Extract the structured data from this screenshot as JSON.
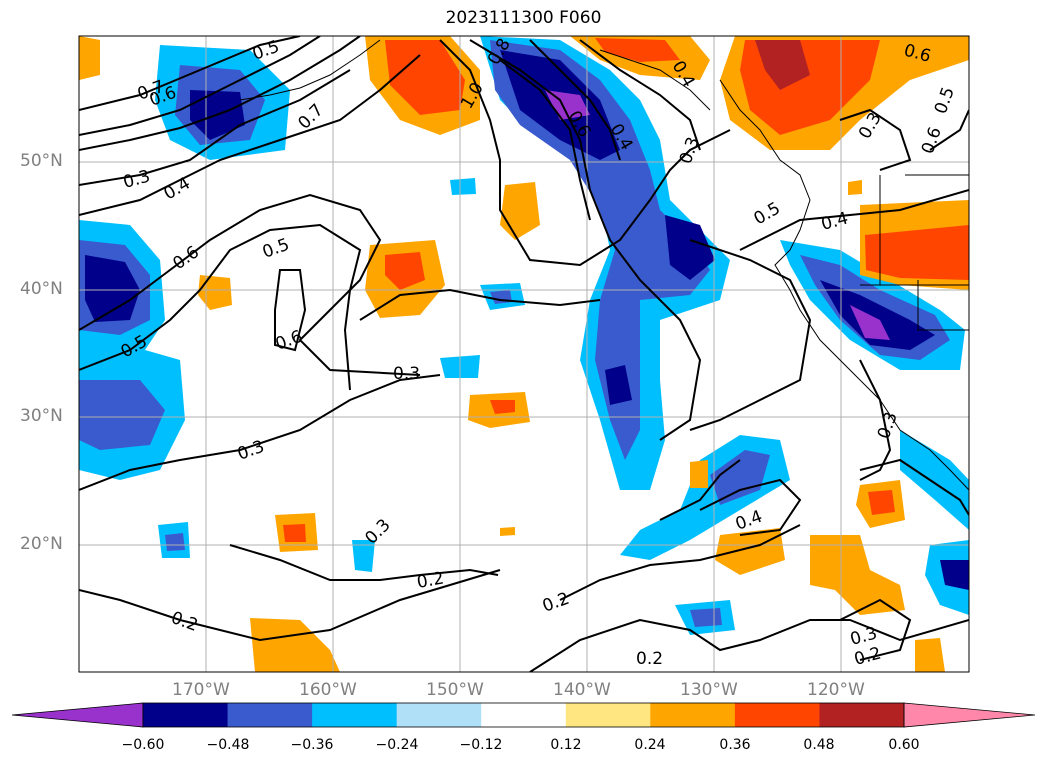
{
  "title": "2023111300 F060",
  "map": {
    "lat_labels": [
      "50°N",
      "40°N",
      "30°N",
      "20°N"
    ],
    "lon_labels": [
      "170°W",
      "160°W",
      "150°W",
      "140°W",
      "130°W",
      "120°W"
    ],
    "contour_labels": [
      "0.7",
      "0.6",
      "0.5",
      "0.7",
      "0.3",
      "0.4",
      "0.6",
      "0.5",
      "0.5",
      "0.6",
      "0.3",
      "0.3",
      "1.0",
      "0.8",
      "0.6",
      "0.4",
      "0.4",
      "0.3",
      "0.6",
      "0.5",
      "0.3",
      "0.6",
      "0.5",
      "0.4",
      "0.3",
      "0.3",
      "0.2",
      "0.2",
      "0.2",
      "0.4",
      "0.3",
      "0.2",
      "0.2"
    ]
  },
  "colorbar": {
    "ticks": [
      "−0.60",
      "−0.48",
      "−0.36",
      "−0.24",
      "−0.12",
      "0.12",
      "0.24",
      "0.36",
      "0.48",
      "0.60"
    ],
    "colors": [
      "#9932cc",
      "#00008b",
      "#3a5bcd",
      "#00bfff",
      "#b0e0f8",
      "#ffffff",
      "#ffe680",
      "#ffa500",
      "#ff4500",
      "#b22222",
      "#ff88aa"
    ]
  }
}
